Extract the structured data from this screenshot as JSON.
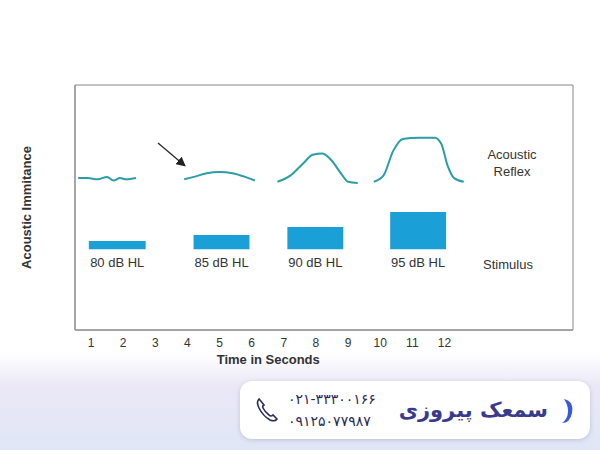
{
  "chart_data": {
    "type": "line",
    "ylabel": "Acoustic Immitance",
    "xlabel": "Time in Seconds",
    "x": [
      0.6,
      0.9,
      1.2,
      1.5,
      1.7,
      1.9,
      2.1,
      2.4,
      3.0,
      3.9,
      4.2,
      4.6,
      5.0,
      5.4,
      5.8,
      6.1,
      6.5,
      6.8,
      7.2,
      7.6,
      7.9,
      8.2,
      8.5,
      8.8,
      9.0,
      9.3,
      9.6,
      9.8,
      10.1,
      10.4,
      10.7,
      11.2,
      11.7,
      11.9,
      12.1,
      12.3,
      12.6
    ],
    "series": [
      {
        "name": "Acoustic Reflex",
        "color": "#2a9da5",
        "values": [
          6.2,
          6.2,
          6.15,
          6.25,
          6.1,
          6.2,
          6.15,
          6.2,
          null,
          6.15,
          6.25,
          6.4,
          6.45,
          6.4,
          6.25,
          6.1,
          null,
          6.05,
          6.3,
          6.8,
          7.15,
          7.2,
          6.9,
          6.35,
          6.05,
          6.0,
          null,
          6.05,
          6.3,
          7.3,
          7.8,
          7.85,
          7.85,
          7.6,
          6.7,
          6.2,
          6.05
        ]
      }
    ],
    "stimulus": {
      "name": "Stimulus",
      "color": "#1aa0d6",
      "bars": [
        {
          "label": "80 dB HL",
          "start": 0.93,
          "end": 2.7,
          "bottom": 3.3,
          "top": 3.63
        },
        {
          "label": "85 dB HL",
          "start": 4.19,
          "end": 5.93,
          "bottom": 3.3,
          "top": 3.88
        },
        {
          "label": "90 dB HL",
          "start": 7.11,
          "end": 8.85,
          "bottom": 3.3,
          "top": 4.2
        },
        {
          "label": "95 dB HL",
          "start": 10.31,
          "end": 12.05,
          "bottom": 3.3,
          "top": 4.82
        }
      ]
    },
    "xlim": [
      0.5,
      16
    ],
    "xticks": [
      1,
      2,
      3,
      4,
      5,
      6,
      7,
      8,
      9,
      10,
      11,
      12
    ],
    "ylim": [
      0,
      10
    ],
    "yticks": [],
    "tick_labels": "x",
    "grid": false
  },
  "footer": {
    "brand": "سمعک پیروزی",
    "phones": [
      "۰۲۱-۳۳۳۰۰۱۶۶",
      "۰۹۱۲۵۰۷۷۹۸۷"
    ]
  }
}
